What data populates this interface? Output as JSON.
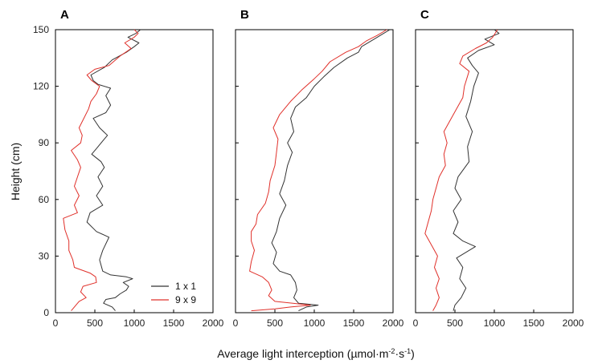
{
  "chart_data": [
    {
      "type": "line",
      "panel_label": "A",
      "xlim": [
        0,
        2000
      ],
      "ylim": [
        0,
        150
      ],
      "x_ticks": [
        0,
        500,
        1000,
        1500,
        2000
      ],
      "y_ticks": [
        0,
        30,
        60,
        90,
        120,
        150
      ],
      "ylabel": "Height (cm)",
      "legend": {
        "placement": "bottom-right"
      },
      "series": [
        {
          "name": "1 x 1",
          "color": "#333333",
          "points": [
            [
              760,
              1
            ],
            [
              720,
              3
            ],
            [
              610,
              5
            ],
            [
              640,
              7
            ],
            [
              760,
              8
            ],
            [
              820,
              10
            ],
            [
              900,
              12
            ],
            [
              930,
              14
            ],
            [
              860,
              16
            ],
            [
              980,
              18
            ],
            [
              900,
              19
            ],
            [
              700,
              20
            ],
            [
              600,
              22
            ],
            [
              560,
              28
            ],
            [
              600,
              33
            ],
            [
              680,
              40
            ],
            [
              520,
              43
            ],
            [
              400,
              48
            ],
            [
              440,
              53
            ],
            [
              600,
              57
            ],
            [
              520,
              62
            ],
            [
              600,
              67
            ],
            [
              540,
              72
            ],
            [
              620,
              77
            ],
            [
              580,
              80
            ],
            [
              460,
              84
            ],
            [
              520,
              87
            ],
            [
              600,
              91
            ],
            [
              660,
              94
            ],
            [
              560,
              98
            ],
            [
              480,
              103
            ],
            [
              640,
              106
            ],
            [
              700,
              110
            ],
            [
              640,
              115
            ],
            [
              700,
              119
            ],
            [
              540,
              121
            ],
            [
              480,
              123
            ],
            [
              450,
              126
            ],
            [
              620,
              130
            ],
            [
              720,
              134
            ],
            [
              900,
              138
            ],
            [
              1000,
              141
            ],
            [
              1060,
              143
            ],
            [
              920,
              146
            ],
            [
              1020,
              148
            ],
            [
              1080,
              150
            ]
          ]
        },
        {
          "name": "9 x 9",
          "color": "#e0302a",
          "points": [
            [
              200,
              1
            ],
            [
              240,
              3
            ],
            [
              300,
              6
            ],
            [
              390,
              8
            ],
            [
              320,
              11
            ],
            [
              350,
              14
            ],
            [
              520,
              16
            ],
            [
              510,
              19
            ],
            [
              440,
              21
            ],
            [
              240,
              24
            ],
            [
              220,
              28
            ],
            [
              170,
              33
            ],
            [
              170,
              38
            ],
            [
              120,
              44
            ],
            [
              100,
              50
            ],
            [
              280,
              53
            ],
            [
              240,
              57
            ],
            [
              300,
              62
            ],
            [
              240,
              67
            ],
            [
              280,
              72
            ],
            [
              320,
              77
            ],
            [
              280,
              81
            ],
            [
              200,
              86
            ],
            [
              320,
              90
            ],
            [
              340,
              94
            ],
            [
              300,
              98
            ],
            [
              360,
              103
            ],
            [
              420,
              108
            ],
            [
              450,
              112
            ],
            [
              520,
              116
            ],
            [
              560,
              120
            ],
            [
              460,
              123
            ],
            [
              400,
              126
            ],
            [
              500,
              129
            ],
            [
              680,
              131
            ],
            [
              820,
              136
            ],
            [
              960,
              140
            ],
            [
              880,
              143
            ],
            [
              1000,
              146
            ],
            [
              1050,
              148
            ],
            [
              1000,
              150
            ]
          ]
        }
      ]
    },
    {
      "type": "line",
      "panel_label": "B",
      "xlim": [
        0,
        2000
      ],
      "ylim": [
        0,
        150
      ],
      "x_ticks": [
        0,
        500,
        1000,
        1500,
        2000
      ],
      "y_ticks": [
        0,
        30,
        60,
        90,
        120,
        150
      ],
      "series": [
        {
          "name": "1 x 1",
          "color": "#333333",
          "points": [
            [
              800,
              1
            ],
            [
              900,
              3
            ],
            [
              1050,
              4
            ],
            [
              800,
              5
            ],
            [
              740,
              8
            ],
            [
              780,
              12
            ],
            [
              760,
              16
            ],
            [
              700,
              20
            ],
            [
              560,
              22
            ],
            [
              480,
              26
            ],
            [
              520,
              32
            ],
            [
              460,
              37
            ],
            [
              520,
              43
            ],
            [
              560,
              50
            ],
            [
              640,
              57
            ],
            [
              560,
              63
            ],
            [
              620,
              70
            ],
            [
              660,
              78
            ],
            [
              720,
              85
            ],
            [
              660,
              90
            ],
            [
              740,
              96
            ],
            [
              700,
              103
            ],
            [
              760,
              109
            ],
            [
              900,
              114
            ],
            [
              1000,
              120
            ],
            [
              1120,
              125
            ],
            [
              1250,
              130
            ],
            [
              1420,
              135
            ],
            [
              1560,
              138
            ],
            [
              1600,
              141
            ],
            [
              1760,
              145
            ],
            [
              1880,
              148
            ],
            [
              1960,
              150
            ]
          ]
        },
        {
          "name": "9 x 9",
          "color": "#e0302a",
          "points": [
            [
              200,
              1
            ],
            [
              500,
              2
            ],
            [
              700,
              3
            ],
            [
              950,
              4
            ],
            [
              500,
              6
            ],
            [
              420,
              9
            ],
            [
              460,
              12
            ],
            [
              420,
              16
            ],
            [
              340,
              19
            ],
            [
              180,
              22
            ],
            [
              200,
              27
            ],
            [
              240,
              33
            ],
            [
              200,
              38
            ],
            [
              200,
              43
            ],
            [
              260,
              47
            ],
            [
              280,
              52
            ],
            [
              380,
              58
            ],
            [
              420,
              64
            ],
            [
              440,
              70
            ],
            [
              500,
              78
            ],
            [
              520,
              85
            ],
            [
              540,
              92
            ],
            [
              480,
              98
            ],
            [
              560,
              105
            ],
            [
              700,
              112
            ],
            [
              840,
              118
            ],
            [
              1000,
              124
            ],
            [
              1100,
              128
            ],
            [
              1200,
              133
            ],
            [
              1400,
              138
            ],
            [
              1560,
              141
            ],
            [
              1660,
              144
            ],
            [
              1800,
              147
            ],
            [
              1920,
              150
            ]
          ]
        }
      ]
    },
    {
      "type": "line",
      "panel_label": "C",
      "xlim": [
        0,
        2000
      ],
      "ylim": [
        0,
        150
      ],
      "x_ticks": [
        0,
        500,
        1000,
        1500,
        2000
      ],
      "y_ticks": [
        0,
        30,
        60,
        90,
        120,
        150
      ],
      "series": [
        {
          "name": "1 x 1",
          "color": "#333333",
          "points": [
            [
              480,
              1
            ],
            [
              500,
              4
            ],
            [
              580,
              8
            ],
            [
              640,
              13
            ],
            [
              560,
              18
            ],
            [
              600,
              24
            ],
            [
              520,
              29
            ],
            [
              760,
              35
            ],
            [
              600,
              38
            ],
            [
              480,
              42
            ],
            [
              540,
              48
            ],
            [
              480,
              54
            ],
            [
              580,
              60
            ],
            [
              500,
              66
            ],
            [
              540,
              72
            ],
            [
              680,
              80
            ],
            [
              660,
              88
            ],
            [
              720,
              96
            ],
            [
              640,
              104
            ],
            [
              700,
              112
            ],
            [
              740,
              120
            ],
            [
              800,
              127
            ],
            [
              720,
              131
            ],
            [
              660,
              135
            ],
            [
              800,
              139
            ],
            [
              1000,
              142
            ],
            [
              880,
              145
            ],
            [
              1060,
              148
            ],
            [
              1000,
              150
            ]
          ]
        },
        {
          "name": "9 x 9",
          "color": "#e0302a",
          "points": [
            [
              220,
              1
            ],
            [
              260,
              4
            ],
            [
              300,
              8
            ],
            [
              260,
              13
            ],
            [
              300,
              18
            ],
            [
              240,
              24
            ],
            [
              280,
              30
            ],
            [
              200,
              36
            ],
            [
              120,
              42
            ],
            [
              160,
              48
            ],
            [
              200,
              54
            ],
            [
              220,
              60
            ],
            [
              260,
              66
            ],
            [
              300,
              72
            ],
            [
              380,
              78
            ],
            [
              360,
              84
            ],
            [
              400,
              90
            ],
            [
              360,
              96
            ],
            [
              440,
              102
            ],
            [
              520,
              108
            ],
            [
              600,
              114
            ],
            [
              620,
              120
            ],
            [
              680,
              128
            ],
            [
              560,
              132
            ],
            [
              600,
              136
            ],
            [
              760,
              140
            ],
            [
              900,
              143
            ],
            [
              980,
              146
            ],
            [
              1040,
              150
            ]
          ]
        }
      ]
    }
  ],
  "figure": {
    "xlabel": "Average light interception (µmol·m",
    "xlabel_sup1": "-2",
    "xlabel_mid": "·s",
    "xlabel_sup2": "-1",
    "xlabel_end": ")"
  }
}
